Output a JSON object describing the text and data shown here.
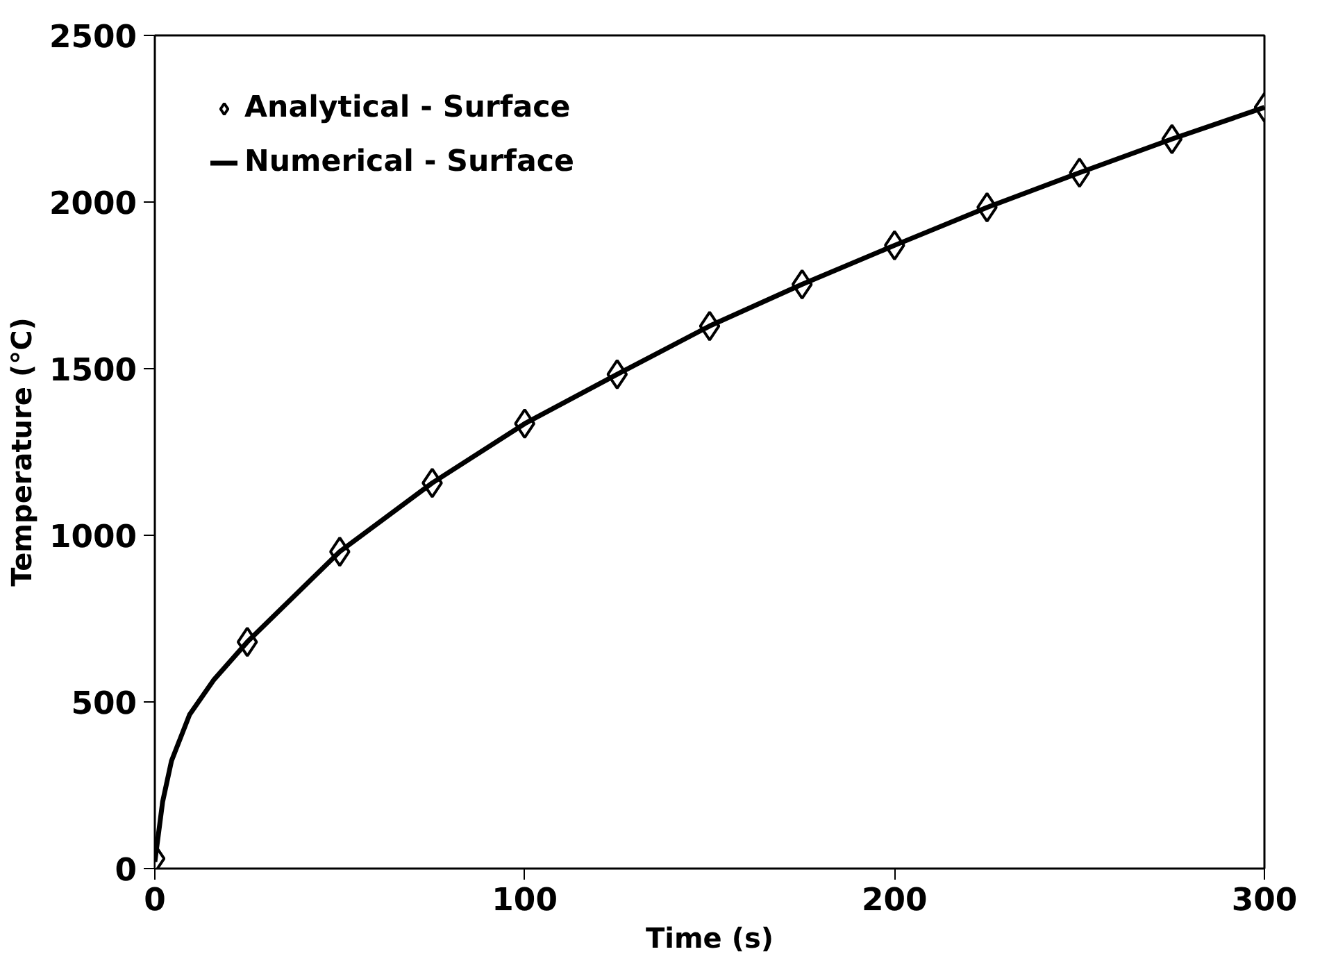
{
  "chart_data": {
    "type": "line",
    "xlabel": "Time (s)",
    "ylabel": "Temperature (°C)",
    "xlim": [
      0,
      300
    ],
    "ylim": [
      0,
      2500
    ],
    "xticks": [
      0,
      100,
      200,
      300
    ],
    "yticks": [
      0,
      500,
      1000,
      1500,
      2000,
      2500
    ],
    "grid": false,
    "legend": "top left",
    "series": [
      {
        "name": "Analytical - Surface",
        "type": "scatter",
        "marker": "diamond",
        "color": "#000000",
        "x": [
          0,
          25,
          50,
          75,
          100,
          125,
          150,
          175,
          200,
          225,
          250,
          275,
          300
        ],
        "values": [
          30,
          680,
          951,
          1157,
          1335,
          1483,
          1628,
          1753,
          1870,
          1984,
          2088,
          2189,
          2284
        ]
      },
      {
        "name": "Numerical - Surface",
        "line_style": "solid",
        "color": "#000000",
        "x": [
          0,
          2.1,
          4.5,
          9.4,
          16,
          25,
          50,
          75,
          100,
          125,
          150,
          175,
          200,
          225,
          250,
          275,
          300
        ],
        "values": [
          20,
          200,
          323,
          462,
          567,
          680,
          951,
          1157,
          1335,
          1483,
          1628,
          1753,
          1870,
          1984,
          2088,
          2189,
          2284
        ]
      }
    ]
  }
}
